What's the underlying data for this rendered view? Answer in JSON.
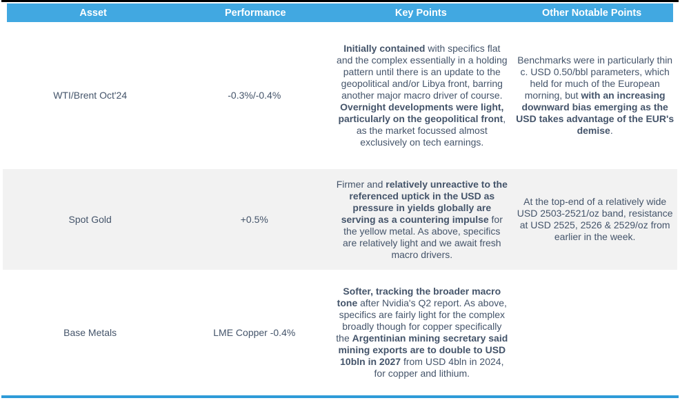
{
  "colors": {
    "header_bg": "#41A8E1",
    "header_text": "#FFFFFF",
    "body_text": "#44546A",
    "alt_row_bg": "#F2F2F2",
    "top_border": "#000000",
    "bottom_border": "#2E9BD8"
  },
  "table": {
    "headers": [
      "Asset",
      "Performance",
      "Key Points",
      "Other Notable Points"
    ],
    "rows": [
      {
        "asset": "WTI/Brent Oct'24",
        "performance": "-0.3%/-0.4%",
        "key_points": [
          {
            "t": "Initially contained",
            "b": true
          },
          {
            "t": " with specifics flat and the complex essentially in a holding pattern until there is an update to the geopolitical and/or Libya front, barring another major macro driver of course. ",
            "b": false
          },
          {
            "t": "Overnight developments were light, particularly on the geopolitical front",
            "b": true
          },
          {
            "t": ", as the market focussed almost exclusively on tech earnings.",
            "b": false
          }
        ],
        "other_points": [
          {
            "t": "Benchmarks were in particularly thin c. USD 0.50/bbl parameters, which held for much of the European morning, but ",
            "b": false
          },
          {
            "t": "with an increasing downward bias emerging as the USD takes advantage of the EUR's demise",
            "b": true
          },
          {
            "t": ".",
            "b": false
          }
        ]
      },
      {
        "asset": "Spot Gold",
        "performance": "+0.5%",
        "key_points": [
          {
            "t": "Firmer and ",
            "b": false
          },
          {
            "t": "relatively unreactive to the referenced uptick in the USD as pressure in yields globally are serving as a countering impulse",
            "b": true
          },
          {
            "t": " for the yellow metal. As above, specifics are relatively light and we await fresh macro drivers.",
            "b": false
          }
        ],
        "other_points": [
          {
            "t": "At the top-end of a relatively wide USD 2503-2521/oz band, resistance at USD 2525, 2526 & 2529/oz from earlier in the week.",
            "b": false
          }
        ]
      },
      {
        "asset": "Base Metals",
        "performance": "LME Copper -0.4%",
        "key_points": [
          {
            "t": "Softer, tracking the broader macro tone",
            "b": true
          },
          {
            "t": " after Nvidia's Q2 report. As above, specifics are fairly light for the complex broadly though for copper specifically the ",
            "b": false
          },
          {
            "t": "Argentinian mining secretary said mining exports are to double to USD 10bln in 2027",
            "b": true
          },
          {
            "t": " from USD 4bln in 2024, for copper and lithium.",
            "b": false
          }
        ],
        "other_points": []
      }
    ]
  }
}
